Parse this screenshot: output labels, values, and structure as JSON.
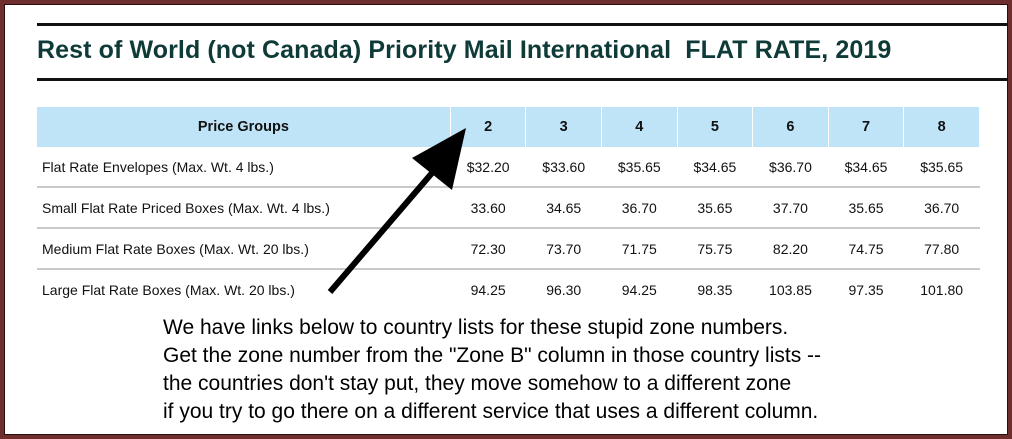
{
  "title": "Rest of World (not Canada) Priority Mail International  FLAT RATE, 2019",
  "table": {
    "header": [
      "Price Groups",
      "2",
      "3",
      "4",
      "5",
      "6",
      "7",
      "8"
    ],
    "rows": [
      {
        "label": "Flat Rate Envelopes (Max. Wt. 4 lbs.)",
        "values": [
          "$32.20",
          "$33.60",
          "$35.65",
          "$34.65",
          "$36.70",
          "$34.65",
          "$35.65"
        ]
      },
      {
        "label": "Small Flat Rate Priced Boxes (Max. Wt. 4 lbs.)",
        "values": [
          "33.60",
          "34.65",
          "36.70",
          "35.65",
          "37.70",
          "35.65",
          "36.70"
        ]
      },
      {
        "label": "Medium Flat Rate Boxes (Max. Wt. 20 lbs.)",
        "values": [
          "72.30",
          "73.70",
          "71.75",
          "75.75",
          "82.20",
          "74.75",
          "77.80"
        ]
      },
      {
        "label": "Large Flat Rate Boxes (Max. Wt. 20 lbs.)",
        "values": [
          "94.25",
          "96.30",
          "94.25",
          "98.35",
          "103.85",
          "97.35",
          "101.80"
        ]
      }
    ]
  },
  "note": [
    "We have links below to country lists for these stupid zone numbers.",
    "Get the zone number from the \"Zone B\" column in those country lists --",
    "the countries don't stay put, they move somehow to a different zone",
    "if you try to go there on a different service that uses a different column."
  ],
  "colors": {
    "header_bg": "#bfe3f7",
    "title": "#0e3a38",
    "frame": "#6e2e2e"
  }
}
